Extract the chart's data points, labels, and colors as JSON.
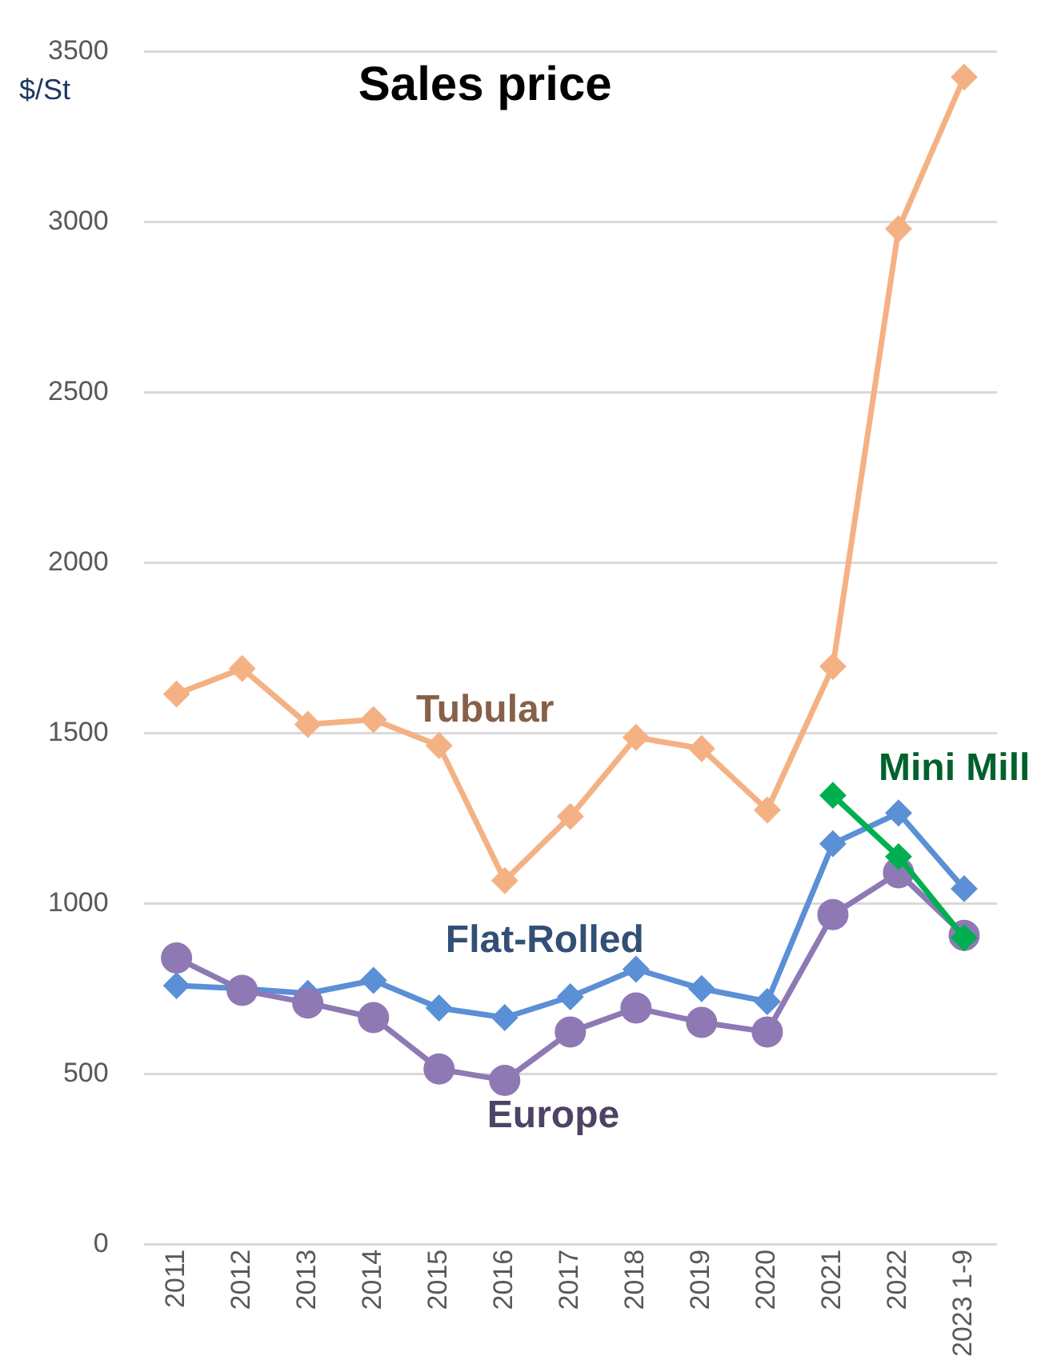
{
  "chart_data": {
    "type": "line",
    "title": "Sales price",
    "ylabel": "$/St",
    "categories": [
      "2011",
      "2012",
      "2013",
      "2014",
      "2015",
      "2016",
      "2017",
      "2018",
      "2019",
      "2020",
      "2021",
      "2022",
      "2023 1-9"
    ],
    "series": [
      {
        "name": "Tubular",
        "color": "#f4b183",
        "marker": "diamond",
        "values": [
          1615,
          1690,
          1526,
          1540,
          1464,
          1068,
          1256,
          1488,
          1455,
          1275,
          1696,
          2980,
          3425
        ]
      },
      {
        "name": "Flat-Rolled",
        "color": "#5b8fd6",
        "marker": "diamond",
        "values": [
          760,
          751,
          737,
          775,
          694,
          666,
          727,
          808,
          751,
          713,
          1176,
          1266,
          1044
        ]
      },
      {
        "name": "Europe",
        "color": "#8e79b5",
        "marker": "circle",
        "values": [
          841,
          746,
          709,
          666,
          515,
          482,
          624,
          694,
          652,
          624,
          968,
          1091,
          907
        ]
      },
      {
        "name": "Mini Mill",
        "color": "#00b050",
        "marker": "diamond",
        "values": [
          null,
          null,
          null,
          null,
          null,
          null,
          null,
          null,
          null,
          null,
          1318,
          1138,
          900
        ]
      }
    ],
    "ylim": [
      0,
      3500
    ],
    "yticks": [
      0,
      500,
      1000,
      1500,
      2000,
      2500,
      3000,
      3500
    ],
    "grid": "y",
    "legend": false
  }
}
